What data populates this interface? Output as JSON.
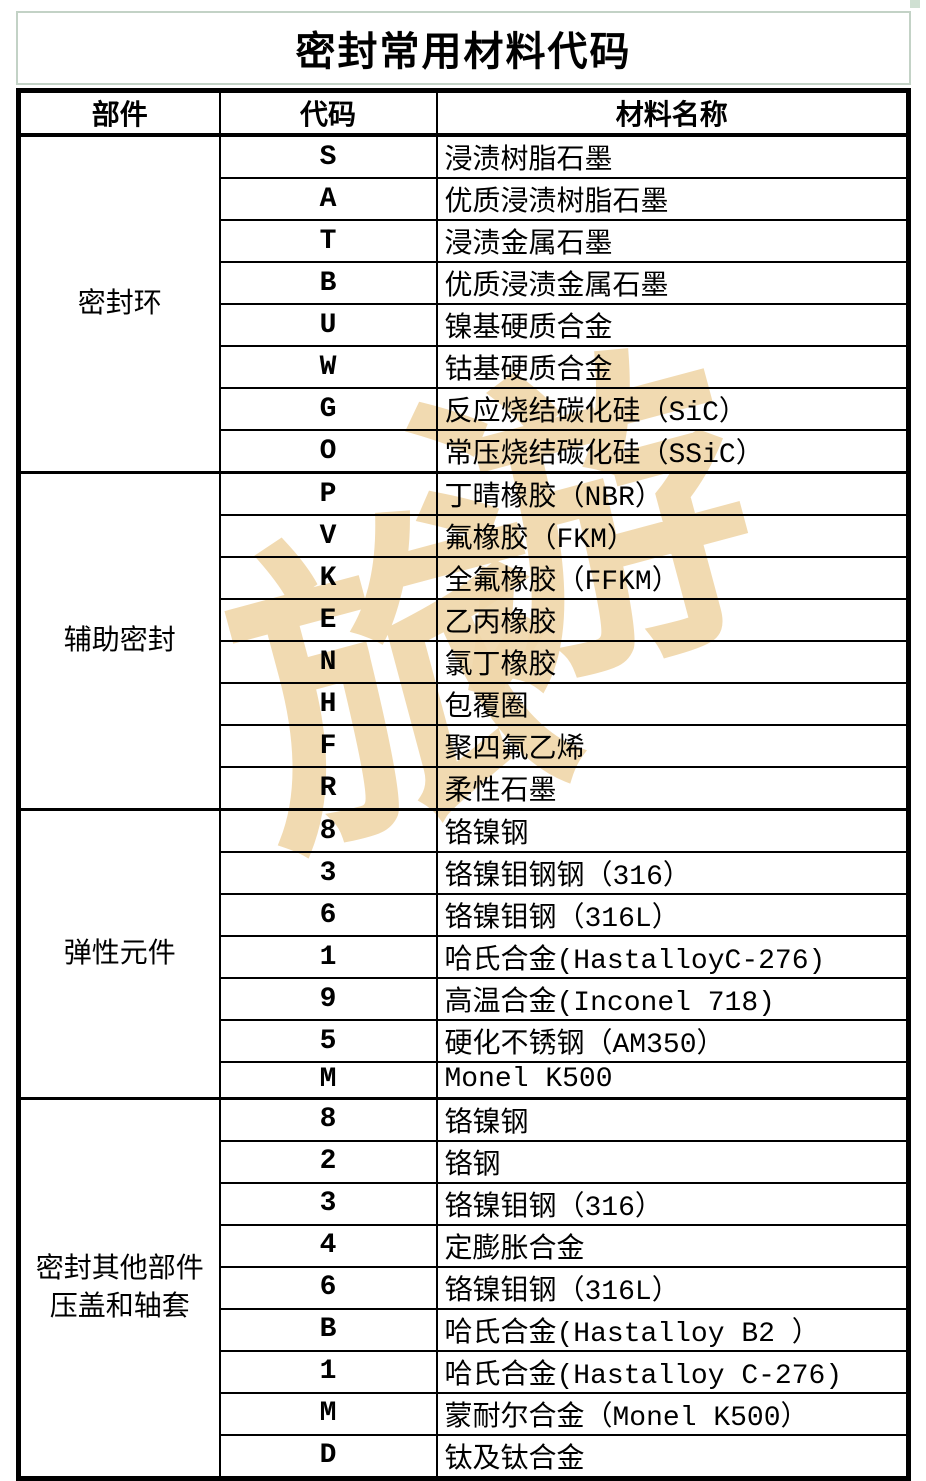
{
  "title": "密封常用材料代码",
  "colors": {
    "title_border": "#c3d2c6",
    "table_border": "#000000",
    "text": "#000000",
    "watermark": "#f0d7ab",
    "background": "#ffffff"
  },
  "watermark": {
    "characters": [
      "旅",
      "游"
    ]
  },
  "table": {
    "headers": [
      "部件",
      "代码",
      "材料名称"
    ],
    "groups": [
      {
        "component_lines": [
          "密封环"
        ],
        "rows": [
          {
            "code": "S",
            "material": "浸渍树脂石墨"
          },
          {
            "code": "A",
            "material": "优质浸渍树脂石墨"
          },
          {
            "code": "T",
            "material": "浸渍金属石墨"
          },
          {
            "code": "B",
            "material": "优质浸渍金属石墨"
          },
          {
            "code": "U",
            "material": "镍基硬质合金"
          },
          {
            "code": "W",
            "material": "钴基硬质合金"
          },
          {
            "code": "G",
            "material": "反应烧结碳化硅（SiC）"
          },
          {
            "code": "O",
            "material": "常压烧结碳化硅（SSiC）"
          }
        ]
      },
      {
        "component_lines": [
          "辅助密封"
        ],
        "rows": [
          {
            "code": "P",
            "material": "丁晴橡胶（NBR）"
          },
          {
            "code": "V",
            "material": "氟橡胶（FKM）"
          },
          {
            "code": "K",
            "material": "全氟橡胶（FFKM）"
          },
          {
            "code": "E",
            "material": "乙丙橡胶"
          },
          {
            "code": "N",
            "material": "氯丁橡胶"
          },
          {
            "code": "H",
            "material": "包覆圈"
          },
          {
            "code": "F",
            "material": "聚四氟乙烯"
          },
          {
            "code": "R",
            "material": "柔性石墨"
          }
        ]
      },
      {
        "component_lines": [
          "弹性元件"
        ],
        "rows": [
          {
            "code": "8",
            "material": "铬镍钢"
          },
          {
            "code": "3",
            "material": "铬镍钼钢钢（316）"
          },
          {
            "code": "6",
            "material": "铬镍钼钢（316L）"
          },
          {
            "code": "1",
            "material": "哈氏合金(HastalloyC-276)"
          },
          {
            "code": "9",
            "material": "高温合金(Inconel 718)"
          },
          {
            "code": "5",
            "material": "硬化不锈钢（AM350）"
          },
          {
            "code": "M",
            "material": "Monel K500"
          }
        ]
      },
      {
        "component_lines": [
          "密封其他部件",
          "压盖和轴套"
        ],
        "rows": [
          {
            "code": "8",
            "material": "铬镍钢"
          },
          {
            "code": "2",
            "material": "铬钢"
          },
          {
            "code": "3",
            "material": "铬镍钼钢（316）"
          },
          {
            "code": "4",
            "material": "定膨胀合金"
          },
          {
            "code": "6",
            "material": "铬镍钼钢（316L）"
          },
          {
            "code": "B",
            "material": "哈氏合金(Hastalloy B2 ）"
          },
          {
            "code": "1",
            "material": "哈氏合金(Hastalloy C-276)"
          },
          {
            "code": "M",
            "material": "蒙耐尔合金（Monel K500）"
          },
          {
            "code": "D",
            "material": "钛及钛合金"
          }
        ]
      }
    ]
  }
}
